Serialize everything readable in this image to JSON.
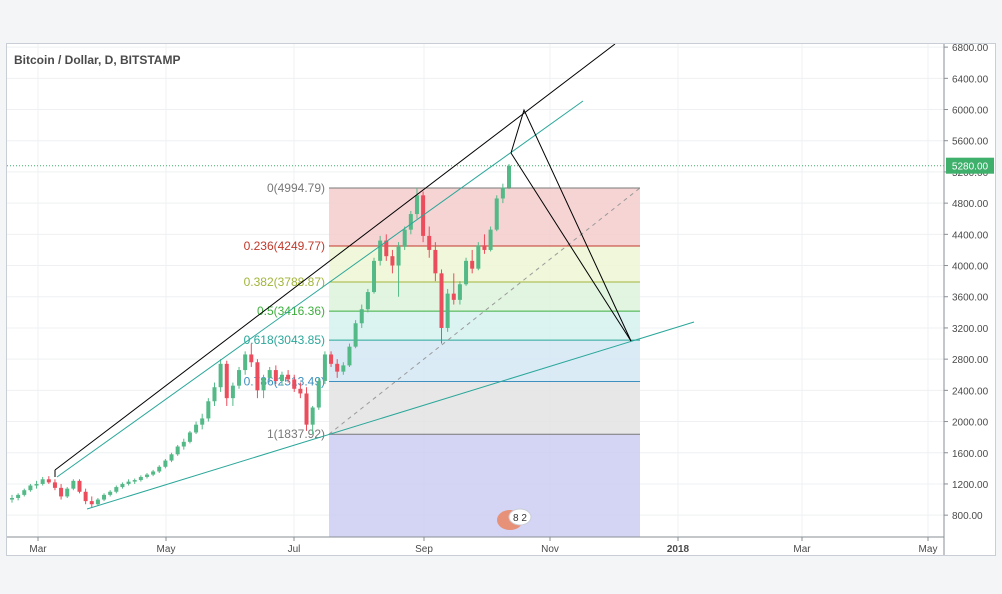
{
  "header": {
    "title": "Bitcoin / Dollar, D, BITSTAMP"
  },
  "price_badge": {
    "value": "5280.00",
    "color": "#3eb06b"
  },
  "watermark": {
    "text": "8 2"
  },
  "chart_data": {
    "type": "candlestick",
    "title": "Bitcoin / Dollar, D, BITSTAMP",
    "ylim": [
      520,
      6840
    ],
    "y_ticks": [
      "6800.00",
      "6400.00",
      "6000.00",
      "5600.00",
      "5200.00",
      "4800.00",
      "4400.00",
      "4000.00",
      "3600.00",
      "3200.00",
      "2800.00",
      "2400.00",
      "2000.00",
      "1600.00",
      "1200.00",
      "800.00"
    ],
    "x_ticks": [
      "Mar",
      "May",
      "Jul",
      "Sep",
      "Nov",
      "2018",
      "Mar",
      "May"
    ],
    "x_ticks_bold": [
      false,
      false,
      false,
      false,
      false,
      true,
      false,
      false
    ],
    "grid": true,
    "last_price": 5280.0,
    "series": [
      {
        "values": [
          [
            1000,
            1060,
            960,
            1020
          ],
          [
            1020,
            1080,
            990,
            1060
          ],
          [
            1060,
            1140,
            1040,
            1120
          ],
          [
            1120,
            1200,
            1100,
            1180
          ],
          [
            1180,
            1240,
            1140,
            1200
          ],
          [
            1200,
            1290,
            1180,
            1260
          ],
          [
            1260,
            1300,
            1200,
            1220
          ],
          [
            1220,
            1260,
            1120,
            1150
          ],
          [
            1150,
            1200,
            1000,
            1040
          ],
          [
            1040,
            1160,
            1020,
            1140
          ],
          [
            1140,
            1260,
            1120,
            1240
          ],
          [
            1240,
            1260,
            1080,
            1100
          ],
          [
            1100,
            1140,
            940,
            980
          ],
          [
            980,
            1040,
            900,
            940
          ],
          [
            940,
            1020,
            920,
            1000
          ],
          [
            1000,
            1080,
            980,
            1060
          ],
          [
            1060,
            1120,
            1040,
            1100
          ],
          [
            1100,
            1180,
            1080,
            1160
          ],
          [
            1160,
            1220,
            1140,
            1200
          ],
          [
            1200,
            1260,
            1180,
            1230
          ],
          [
            1230,
            1270,
            1200,
            1250
          ],
          [
            1250,
            1310,
            1230,
            1290
          ],
          [
            1290,
            1340,
            1270,
            1320
          ],
          [
            1320,
            1380,
            1300,
            1360
          ],
          [
            1360,
            1440,
            1340,
            1420
          ],
          [
            1420,
            1520,
            1400,
            1500
          ],
          [
            1500,
            1600,
            1480,
            1580
          ],
          [
            1580,
            1700,
            1560,
            1680
          ],
          [
            1680,
            1780,
            1640,
            1740
          ],
          [
            1740,
            1880,
            1720,
            1860
          ],
          [
            1860,
            2000,
            1840,
            1960
          ],
          [
            1960,
            2100,
            1900,
            2040
          ],
          [
            2040,
            2300,
            2000,
            2260
          ],
          [
            2260,
            2500,
            2200,
            2440
          ],
          [
            2440,
            2800,
            2380,
            2740
          ],
          [
            2740,
            2780,
            2200,
            2300
          ],
          [
            2300,
            2500,
            2200,
            2460
          ],
          [
            2460,
            2700,
            2420,
            2660
          ],
          [
            2660,
            2900,
            2600,
            2860
          ],
          [
            2860,
            3000,
            2700,
            2760
          ],
          [
            2760,
            2800,
            2300,
            2400
          ],
          [
            2400,
            2600,
            2300,
            2560
          ],
          [
            2560,
            2700,
            2500,
            2660
          ],
          [
            2660,
            2720,
            2480,
            2520
          ],
          [
            2520,
            2640,
            2460,
            2600
          ],
          [
            2600,
            2660,
            2500,
            2540
          ],
          [
            2540,
            2600,
            2380,
            2420
          ],
          [
            2420,
            2500,
            2300,
            2360
          ],
          [
            2360,
            2440,
            1880,
            1960
          ],
          [
            1960,
            2200,
            1838,
            2180
          ],
          [
            2180,
            2560,
            2150,
            2520
          ],
          [
            2520,
            2900,
            2480,
            2860
          ],
          [
            2860,
            2900,
            2700,
            2740
          ],
          [
            2740,
            2800,
            2560,
            2640
          ],
          [
            2640,
            2760,
            2600,
            2720
          ],
          [
            2720,
            3000,
            2700,
            2960
          ],
          [
            2960,
            3300,
            2940,
            3260
          ],
          [
            3260,
            3500,
            3200,
            3440
          ],
          [
            3440,
            3700,
            3400,
            3660
          ],
          [
            3660,
            4100,
            3640,
            4060
          ],
          [
            4060,
            4380,
            4000,
            4320
          ],
          [
            4320,
            4400,
            4060,
            4120
          ],
          [
            4120,
            4200,
            3900,
            4000
          ],
          [
            4000,
            4300,
            3600,
            4240
          ],
          [
            4240,
            4500,
            4200,
            4460
          ],
          [
            4460,
            4700,
            4400,
            4660
          ],
          [
            4660,
            4995,
            4600,
            4900
          ],
          [
            4900,
            4950,
            4300,
            4380
          ],
          [
            4380,
            4500,
            4100,
            4200
          ],
          [
            4200,
            4300,
            3800,
            3900
          ],
          [
            3900,
            3950,
            3000,
            3200
          ],
          [
            3200,
            3700,
            3150,
            3640
          ],
          [
            3640,
            3900,
            3500,
            3560
          ],
          [
            3560,
            3800,
            3500,
            3760
          ],
          [
            3760,
            4100,
            3740,
            4060
          ],
          [
            4060,
            4200,
            3900,
            3960
          ],
          [
            3960,
            4300,
            3940,
            4260
          ],
          [
            4260,
            4400,
            4150,
            4200
          ],
          [
            4200,
            4500,
            4180,
            4460
          ],
          [
            4460,
            4900,
            4440,
            4860
          ],
          [
            4860,
            5050,
            4800,
            5000
          ],
          [
            5000,
            5300,
            4980,
            5280
          ]
        ]
      }
    ],
    "fib_levels": [
      {
        "label": "0(4994.79)",
        "value": 4994.79,
        "color": "#787878",
        "fill": "#f4cccc"
      },
      {
        "label": "0.236(4249.77)",
        "value": 4249.77,
        "color": "#c0392b",
        "fill": "#eef6d4"
      },
      {
        "label": "0.382(3788.87)",
        "value": 3788.87,
        "color": "#a3b43a",
        "fill": "#dcf3dc"
      },
      {
        "label": "0.5(3416.36)",
        "value": 3416.36,
        "color": "#3fae3f",
        "fill": "#d5f1ee"
      },
      {
        "label": "0.618(3043.85)",
        "value": 3043.85,
        "color": "#2aa79a",
        "fill": "#d4e8f5"
      },
      {
        "label": "0.786(2513.49)",
        "value": 2513.49,
        "color": "#3f8fbf",
        "fill": "#e3e3e3"
      },
      {
        "label": "1(1837.92)",
        "value": 1837.92,
        "color": "#787878",
        "fill": "#cdcdf2"
      }
    ]
  }
}
